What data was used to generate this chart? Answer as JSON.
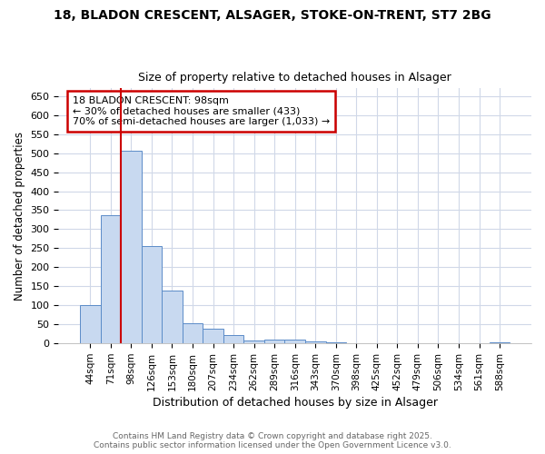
{
  "title1": "18, BLADON CRESCENT, ALSAGER, STOKE-ON-TRENT, ST7 2BG",
  "title2": "Size of property relative to detached houses in Alsager",
  "xlabel": "Distribution of detached houses by size in Alsager",
  "ylabel": "Number of detached properties",
  "categories": [
    "44sqm",
    "71sqm",
    "98sqm",
    "126sqm",
    "153sqm",
    "180sqm",
    "207sqm",
    "234sqm",
    "262sqm",
    "289sqm",
    "316sqm",
    "343sqm",
    "370sqm",
    "398sqm",
    "425sqm",
    "452sqm",
    "479sqm",
    "506sqm",
    "534sqm",
    "561sqm",
    "588sqm"
  ],
  "values": [
    100,
    338,
    507,
    255,
    140,
    53,
    38,
    23,
    8,
    10,
    10,
    5,
    2,
    0,
    0,
    0,
    0,
    0,
    0,
    0,
    2
  ],
  "bar_color": "#c8d9f0",
  "bar_edge_color": "#5b8cc8",
  "red_line_index": 2,
  "annotation_title": "18 BLADON CRESCENT: 98sqm",
  "annotation_line2": "← 30% of detached houses are smaller (433)",
  "annotation_line3": "70% of semi-detached houses are larger (1,033) →",
  "annotation_box_color": "#ffffff",
  "annotation_box_edge": "#cc0000",
  "red_line_color": "#cc0000",
  "yticks": [
    0,
    50,
    100,
    150,
    200,
    250,
    300,
    350,
    400,
    450,
    500,
    550,
    600,
    650
  ],
  "ylim": [
    0,
    670
  ],
  "footer1": "Contains HM Land Registry data © Crown copyright and database right 2025.",
  "footer2": "Contains public sector information licensed under the Open Government Licence v3.0.",
  "background_color": "#ffffff",
  "grid_color": "#d0d8e8"
}
